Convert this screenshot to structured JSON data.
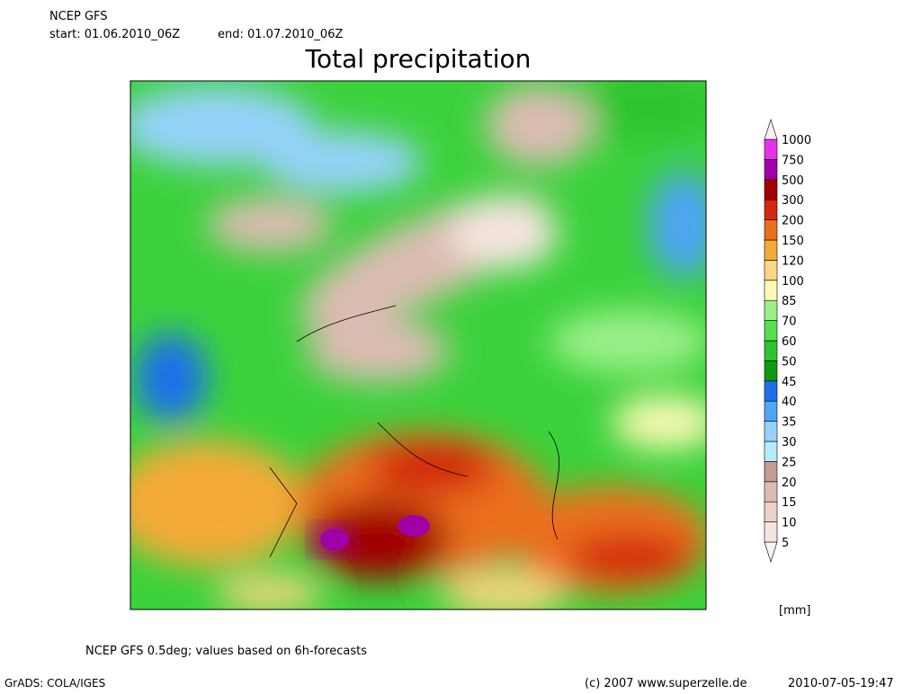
{
  "header": {
    "model": "NCEP GFS",
    "start": "start: 01.06.2010_06Z",
    "end": "end: 01.07.2010_06Z"
  },
  "title": "Total precipitation",
  "legend": {
    "unit": "[mm]",
    "levels": [
      5,
      10,
      15,
      20,
      25,
      30,
      35,
      40,
      45,
      50,
      60,
      70,
      85,
      100,
      120,
      150,
      200,
      300,
      500,
      750,
      1000
    ],
    "colors": [
      "#fbf3f1",
      "#f4e4df",
      "#ead2cb",
      "#dcbcb2",
      "#c49c92",
      "#b4ecfa",
      "#96d2fa",
      "#50a5f5",
      "#1e6eeb",
      "#0f9a12",
      "#2ec42e",
      "#56e04e",
      "#9cf08a",
      "#fafab4",
      "#fad782",
      "#f5aa37",
      "#eb6e1e",
      "#d2280f",
      "#a00000",
      "#a000a8",
      "#e632e6",
      "#fbeefb"
    ]
  },
  "footer": {
    "note": "NCEP GFS 0.5deg; values based on 6h-forecasts",
    "software": "GrADS: COLA/IGES",
    "copyright": "(c) 2007 www.superzelle.de",
    "timestamp": "2010-07-05-19:47"
  }
}
